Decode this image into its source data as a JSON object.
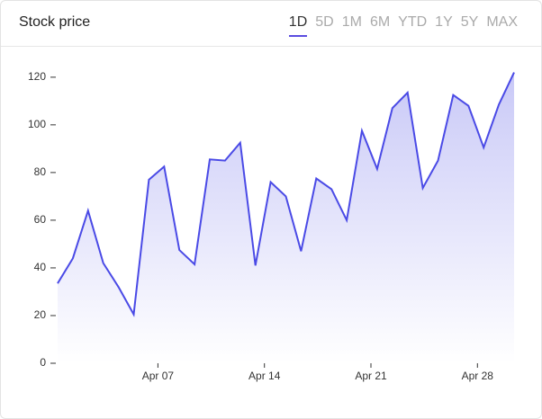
{
  "header": {
    "title": "Stock price",
    "tabs": [
      "1D",
      "5D",
      "1M",
      "6M",
      "YTD",
      "1Y",
      "5Y",
      "MAX"
    ],
    "active_tab": "1D"
  },
  "chart_data": {
    "type": "area",
    "color": "#4a4ae6",
    "categories": [
      null,
      null,
      null,
      null,
      null,
      null,
      "Apr 07",
      null,
      null,
      null,
      null,
      null,
      null,
      "Apr 14",
      null,
      null,
      null,
      null,
      null,
      null,
      "Apr 21",
      null,
      null,
      null,
      null,
      null,
      null,
      "Apr 28",
      null,
      null,
      null
    ],
    "values": [
      33.5,
      44,
      64,
      42,
      32,
      20.5,
      77,
      82.5,
      47.5,
      41.5,
      85.5,
      85,
      92.5,
      41,
      76,
      70,
      47,
      77.5,
      73,
      60,
      97.5,
      81.5,
      107,
      113.5,
      73.5,
      85,
      112.5,
      108,
      90.5,
      108.5,
      122
    ],
    "ylim": [
      0,
      132
    ],
    "yticks": [
      0,
      20,
      40,
      60,
      80,
      100,
      120
    ]
  }
}
